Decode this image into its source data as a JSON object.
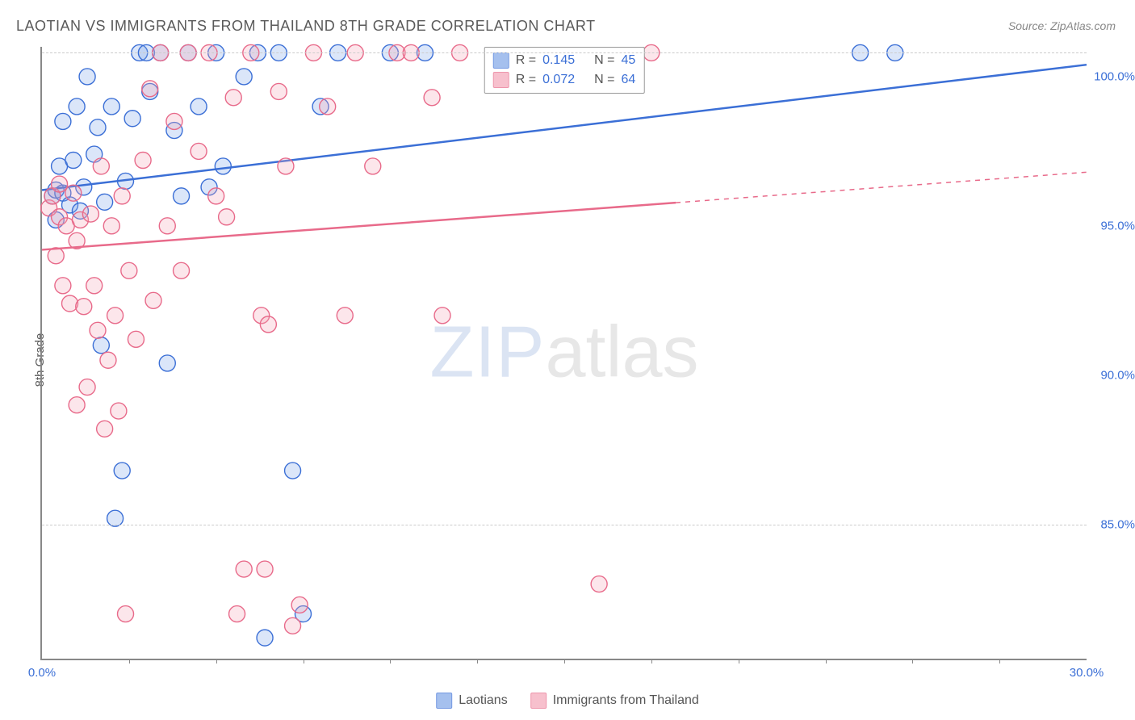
{
  "title": "LAOTIAN VS IMMIGRANTS FROM THAILAND 8TH GRADE CORRELATION CHART",
  "source": "Source: ZipAtlas.com",
  "y_axis_label": "8th Grade",
  "watermark": {
    "part1": "ZIP",
    "part2": "atlas"
  },
  "chart": {
    "type": "scatter",
    "background_color": "#ffffff",
    "grid_color": "#cccccc",
    "axis_color": "#888888",
    "xlim": [
      0,
      30
    ],
    "ylim": [
      80.5,
      101
    ],
    "x_ticks_major": [
      0,
      30
    ],
    "x_ticks_minor": [
      2.5,
      5,
      7.5,
      10,
      12.5,
      15,
      17.5,
      20,
      22.5,
      25,
      27.5
    ],
    "x_tick_labels": {
      "0": "0.0%",
      "30": "30.0%"
    },
    "y_ticks": [
      85,
      90,
      95,
      100
    ],
    "y_tick_labels": {
      "85": "85.0%",
      "90": "90.0%",
      "95": "95.0%",
      "100": "100.0%"
    },
    "y_grid_at": [
      85,
      100.8
    ],
    "title_fontsize": 18,
    "label_fontsize": 15,
    "tick_fontsize": 15,
    "tick_color": "#3b6fd6",
    "marker_radius": 10,
    "marker_fill_opacity": 0.28,
    "marker_stroke_width": 1.4,
    "line_width": 2.5,
    "series": [
      {
        "name": "Laotians",
        "color_stroke": "#3b6fd6",
        "color_fill": "#7fa6e8",
        "R": "0.145",
        "N": "45",
        "trend": {
          "x1": 0,
          "y1": 96.2,
          "x2": 30,
          "y2": 100.4,
          "solid_until_x": 30
        },
        "points": [
          [
            0.3,
            96.0
          ],
          [
            0.4,
            96.2
          ],
          [
            0.4,
            95.2
          ],
          [
            0.5,
            97.0
          ],
          [
            0.6,
            96.1
          ],
          [
            0.6,
            98.5
          ],
          [
            0.8,
            95.7
          ],
          [
            0.9,
            97.2
          ],
          [
            1.0,
            99.0
          ],
          [
            1.1,
            95.5
          ],
          [
            1.2,
            96.3
          ],
          [
            1.3,
            100.0
          ],
          [
            1.5,
            97.4
          ],
          [
            1.6,
            98.3
          ],
          [
            1.7,
            91.0
          ],
          [
            1.8,
            95.8
          ],
          [
            2.0,
            99.0
          ],
          [
            2.1,
            85.2
          ],
          [
            2.3,
            86.8
          ],
          [
            2.4,
            96.5
          ],
          [
            2.6,
            98.6
          ],
          [
            2.8,
            100.8
          ],
          [
            3.0,
            100.8
          ],
          [
            3.1,
            99.5
          ],
          [
            3.4,
            100.8
          ],
          [
            3.6,
            90.4
          ],
          [
            3.8,
            98.2
          ],
          [
            4.0,
            96.0
          ],
          [
            4.2,
            100.8
          ],
          [
            4.5,
            99.0
          ],
          [
            4.8,
            96.3
          ],
          [
            5.0,
            100.8
          ],
          [
            5.2,
            97.0
          ],
          [
            5.8,
            100.0
          ],
          [
            6.2,
            100.8
          ],
          [
            6.4,
            81.2
          ],
          [
            6.8,
            100.8
          ],
          [
            7.2,
            86.8
          ],
          [
            7.5,
            82.0
          ],
          [
            8.0,
            99.0
          ],
          [
            8.5,
            100.8
          ],
          [
            10.0,
            100.8
          ],
          [
            11.0,
            100.8
          ],
          [
            23.5,
            100.8
          ],
          [
            24.5,
            100.8
          ]
        ]
      },
      {
        "name": "Immigrants from Thailand",
        "color_stroke": "#e86a8a",
        "color_fill": "#f4a6b8",
        "R": "0.072",
        "N": "64",
        "trend": {
          "x1": 0,
          "y1": 94.2,
          "x2": 30,
          "y2": 96.8,
          "solid_until_x": 18.2
        },
        "points": [
          [
            0.2,
            95.6
          ],
          [
            0.3,
            96.0
          ],
          [
            0.4,
            94.0
          ],
          [
            0.5,
            95.3
          ],
          [
            0.5,
            96.4
          ],
          [
            0.6,
            93.0
          ],
          [
            0.7,
            95.0
          ],
          [
            0.8,
            92.4
          ],
          [
            0.9,
            96.1
          ],
          [
            1.0,
            94.5
          ],
          [
            1.0,
            89.0
          ],
          [
            1.1,
            95.2
          ],
          [
            1.2,
            92.3
          ],
          [
            1.3,
            89.6
          ],
          [
            1.4,
            95.4
          ],
          [
            1.5,
            93.0
          ],
          [
            1.6,
            91.5
          ],
          [
            1.7,
            97.0
          ],
          [
            1.8,
            88.2
          ],
          [
            1.9,
            90.5
          ],
          [
            2.0,
            95.0
          ],
          [
            2.1,
            92.0
          ],
          [
            2.2,
            88.8
          ],
          [
            2.3,
            96.0
          ],
          [
            2.4,
            82.0
          ],
          [
            2.5,
            93.5
          ],
          [
            2.7,
            91.2
          ],
          [
            2.9,
            97.2
          ],
          [
            3.1,
            99.6
          ],
          [
            3.2,
            92.5
          ],
          [
            3.4,
            100.8
          ],
          [
            3.6,
            95.0
          ],
          [
            3.8,
            98.5
          ],
          [
            4.0,
            93.5
          ],
          [
            4.2,
            100.8
          ],
          [
            4.5,
            97.5
          ],
          [
            4.8,
            100.8
          ],
          [
            5.0,
            96.0
          ],
          [
            5.3,
            95.3
          ],
          [
            5.5,
            99.3
          ],
          [
            5.6,
            82.0
          ],
          [
            5.8,
            83.5
          ],
          [
            6.0,
            100.8
          ],
          [
            6.3,
            92.0
          ],
          [
            6.4,
            83.5
          ],
          [
            6.5,
            91.7
          ],
          [
            6.8,
            99.5
          ],
          [
            7.0,
            97.0
          ],
          [
            7.2,
            81.6
          ],
          [
            7.4,
            82.3
          ],
          [
            7.8,
            100.8
          ],
          [
            8.2,
            99.0
          ],
          [
            8.7,
            92.0
          ],
          [
            9.0,
            100.8
          ],
          [
            9.5,
            97.0
          ],
          [
            10.2,
            100.8
          ],
          [
            10.6,
            100.8
          ],
          [
            11.2,
            99.3
          ],
          [
            11.5,
            92.0
          ],
          [
            12.0,
            100.8
          ],
          [
            13.5,
            100.0
          ],
          [
            15.5,
            100.0
          ],
          [
            16.0,
            83.0
          ],
          [
            17.5,
            100.8
          ]
        ]
      }
    ]
  },
  "legend_r": {
    "rows": [
      {
        "swatch_stroke": "#3b6fd6",
        "swatch_fill": "#7fa6e8",
        "r_label": "R =",
        "r_val": "0.145",
        "n_label": "N =",
        "n_val": "45"
      },
      {
        "swatch_stroke": "#e86a8a",
        "swatch_fill": "#f4a6b8",
        "r_label": "R =",
        "r_val": "0.072",
        "n_label": "N =",
        "n_val": "64"
      }
    ]
  },
  "legend_bottom": {
    "items": [
      {
        "swatch_stroke": "#3b6fd6",
        "swatch_fill": "#7fa6e8",
        "label": "Laotians"
      },
      {
        "swatch_stroke": "#e86a8a",
        "swatch_fill": "#f4a6b8",
        "label": "Immigrants from Thailand"
      }
    ]
  }
}
